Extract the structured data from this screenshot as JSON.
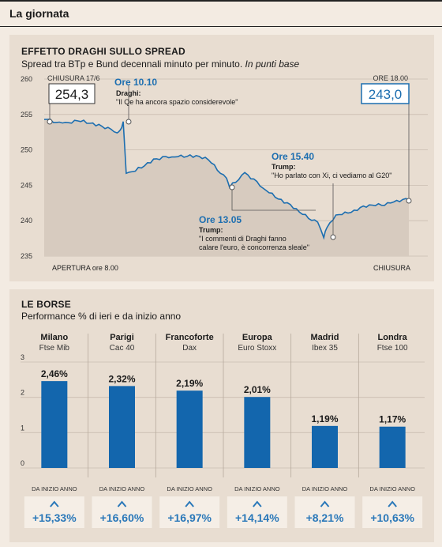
{
  "header": {
    "title": "La giornata"
  },
  "spread": {
    "title": "EFFETTO DRAGHI SULLO SPREAD",
    "subtitle": "Spread tra BTp e Bund decennali minuto per minuto.",
    "subtitle_unit": "In punti base",
    "y_ticks": [
      "260",
      "255",
      "250",
      "245",
      "240",
      "235"
    ],
    "close_prev_label": "CHIUSURA 17/6",
    "close_prev_value": "254,3",
    "close_time_label": "ORE 18.00",
    "close_value": "243,0",
    "x_start_label": "APERTURA ore 8.00",
    "x_end_label": "CHIUSURA",
    "annotations": [
      {
        "time": "Ore 10.10",
        "who": "Draghi:",
        "quote": "\"Il Qe ha ancora spazio considerevole\""
      },
      {
        "time": "Ore 13.05",
        "who": "Trump:",
        "quote1": "\"I commenti di Draghi fanno",
        "quote2": "calare l'euro, è concorrenza sleale\""
      },
      {
        "time": "Ore 15.40",
        "who": "Trump:",
        "quote": "\"Ho parlato con Xi, ci vediamo al G20\""
      }
    ]
  },
  "chart_data": [
    {
      "type": "area",
      "title": "EFFETTO DRAGHI SULLO SPREAD",
      "ylabel": "In punti base",
      "ylim": [
        235,
        260
      ],
      "x": [
        "8.00",
        "8.30",
        "9.00",
        "9.30",
        "10.00",
        "10.05",
        "10.10",
        "10.15",
        "10.30",
        "11.00",
        "11.30",
        "12.00",
        "12.30",
        "13.00",
        "13.05",
        "13.30",
        "14.00",
        "14.30",
        "15.00",
        "15.30",
        "15.40",
        "15.45",
        "16.00",
        "16.30",
        "17.00",
        "17.30",
        "18.00"
      ],
      "values": [
        254.3,
        253.8,
        254.0,
        253.6,
        252.4,
        252.8,
        254.0,
        246.7,
        247.0,
        248.7,
        249.0,
        249.3,
        248.6,
        246.0,
        244.7,
        246.8,
        244.6,
        243.0,
        241.2,
        239.8,
        237.6,
        239.0,
        240.8,
        241.5,
        242.2,
        242.5,
        243.0
      ],
      "annotations": [
        "Ore 10.10",
        "Ore 13.05",
        "Ore 15.40"
      ]
    },
    {
      "type": "bar",
      "title": "LE BORSE",
      "categories": [
        "Milano",
        "Parigi",
        "Francoforte",
        "Europa",
        "Madrid",
        "Londra"
      ],
      "values": [
        2.46,
        2.32,
        2.19,
        2.01,
        1.19,
        1.17
      ],
      "ylim": [
        0,
        3
      ]
    }
  ],
  "borse": {
    "title": "LE BORSE",
    "subtitle": "Performance % di ieri e da inizio anno",
    "y_ticks": [
      "3",
      "2",
      "1",
      "0"
    ],
    "ytd_label": "DA INIZIO ANNO",
    "markets": [
      {
        "name": "Milano",
        "index": "Ftse Mib",
        "value_label": "2,46%",
        "ytd": "+15,33%"
      },
      {
        "name": "Parigi",
        "index": "Cac 40",
        "value_label": "2,32%",
        "ytd": "+16,60%"
      },
      {
        "name": "Francoforte",
        "index": "Dax",
        "value_label": "2,19%",
        "ytd": "+16,97%"
      },
      {
        "name": "Europa",
        "index": "Euro Stoxx",
        "value_label": "2,01%",
        "ytd": "+14,14%"
      },
      {
        "name": "Madrid",
        "index": "Ibex 35",
        "value_label": "1,19%",
        "ytd": "+8,21%"
      },
      {
        "name": "Londra",
        "index": "Ftse 100",
        "value_label": "1,17%",
        "ytd": "+10,63%"
      }
    ]
  },
  "colors": {
    "accent": "#1c6eb0",
    "bar": "#1366ad",
    "area": "#d7cbbf",
    "ytd": "#2a78b9"
  }
}
